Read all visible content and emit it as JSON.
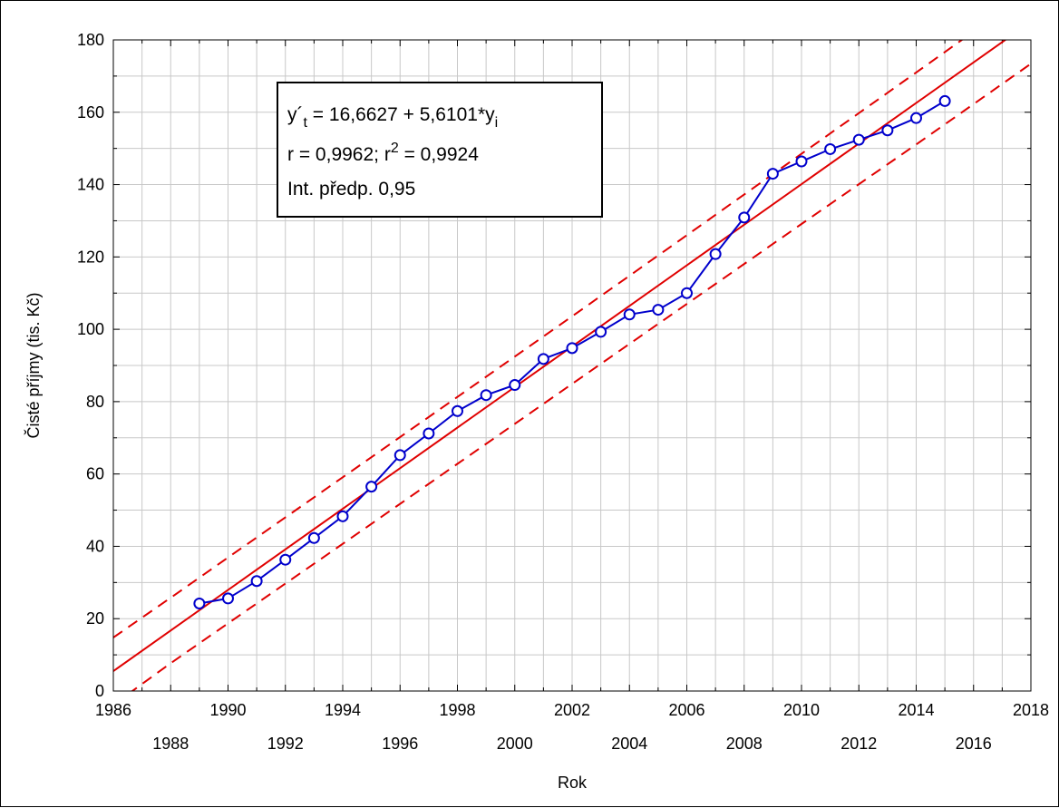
{
  "chart_data": {
    "type": "scatter",
    "xlabel": "Rok",
    "ylabel": "Čisté příjmy (tis. Kč)",
    "xlim": [
      1986,
      2018
    ],
    "ylim": [
      0,
      180
    ],
    "x_ticks_upper": [
      1986,
      1990,
      1994,
      1998,
      2002,
      2006,
      2010,
      2014,
      2018
    ],
    "x_ticks_lower": [
      1988,
      1992,
      1996,
      2000,
      2004,
      2008,
      2012,
      2016
    ],
    "y_ticks": [
      0,
      20,
      40,
      60,
      80,
      100,
      120,
      140,
      160,
      180
    ],
    "grid": true,
    "annotation": {
      "eq_prefix": "y´",
      "eq_sub": "t",
      "eq_rest": " = 16,6627 + 5,6101*y",
      "eq_sub2": "i",
      "r_text": "r = 0,9962; r",
      "r_sup": "2",
      "r_rest": " = 0,9924",
      "int_text": "Int. předp. 0,95",
      "placement": "top-left"
    },
    "series": [
      {
        "x": [
          1989,
          1990,
          1991,
          1992,
          1993,
          1994,
          1995,
          1996,
          1997,
          1998,
          1999,
          2000,
          2001,
          2002,
          2003,
          2004,
          2005,
          2006,
          2007,
          2008,
          2009,
          2010,
          2011,
          2012,
          2013,
          2014,
          2015
        ],
        "y": [
          24.2,
          25.6,
          30.4,
          36.3,
          42.3,
          48.3,
          56.5,
          65.2,
          71.2,
          77.4,
          81.8,
          84.6,
          91.8,
          94.8,
          99.3,
          104.1,
          105.4,
          110.0,
          120.8,
          130.9,
          143.0,
          146.4,
          149.8,
          152.4,
          155.0,
          158.4,
          163.1
        ]
      }
    ],
    "fit_line": {
      "x1": 1986,
      "y1": 5.5,
      "x2": 2018,
      "y2": 185.0
    },
    "upper_band": [
      [
        1986,
        14.8
      ],
      [
        1988,
        25.8
      ],
      [
        1990,
        36.9
      ],
      [
        1994,
        59.1
      ],
      [
        1998,
        81.3
      ],
      [
        2002,
        103.6
      ],
      [
        2006,
        126.0
      ],
      [
        2010,
        148.5
      ],
      [
        2014,
        171.0
      ],
      [
        2018,
        193.6
      ]
    ],
    "lower_band": [
      [
        1986,
        -3.8
      ],
      [
        1988,
        7.7
      ],
      [
        1990,
        18.7
      ],
      [
        1994,
        40.7
      ],
      [
        1998,
        62.8
      ],
      [
        2002,
        84.9
      ],
      [
        2006,
        107.0
      ],
      [
        2010,
        129.1
      ],
      [
        2014,
        151.1
      ],
      [
        2018,
        173.4
      ]
    ],
    "colors": {
      "data": "#0000cc",
      "fit": "#e00000",
      "grid": "#c8c8c8"
    }
  }
}
